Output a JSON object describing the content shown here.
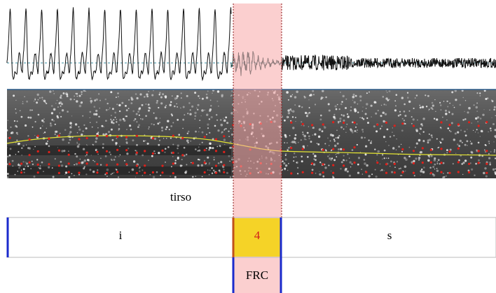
{
  "word": "tirso",
  "segments": [
    "i",
    "4",
    "s"
  ],
  "annotation": "FRC"
}
